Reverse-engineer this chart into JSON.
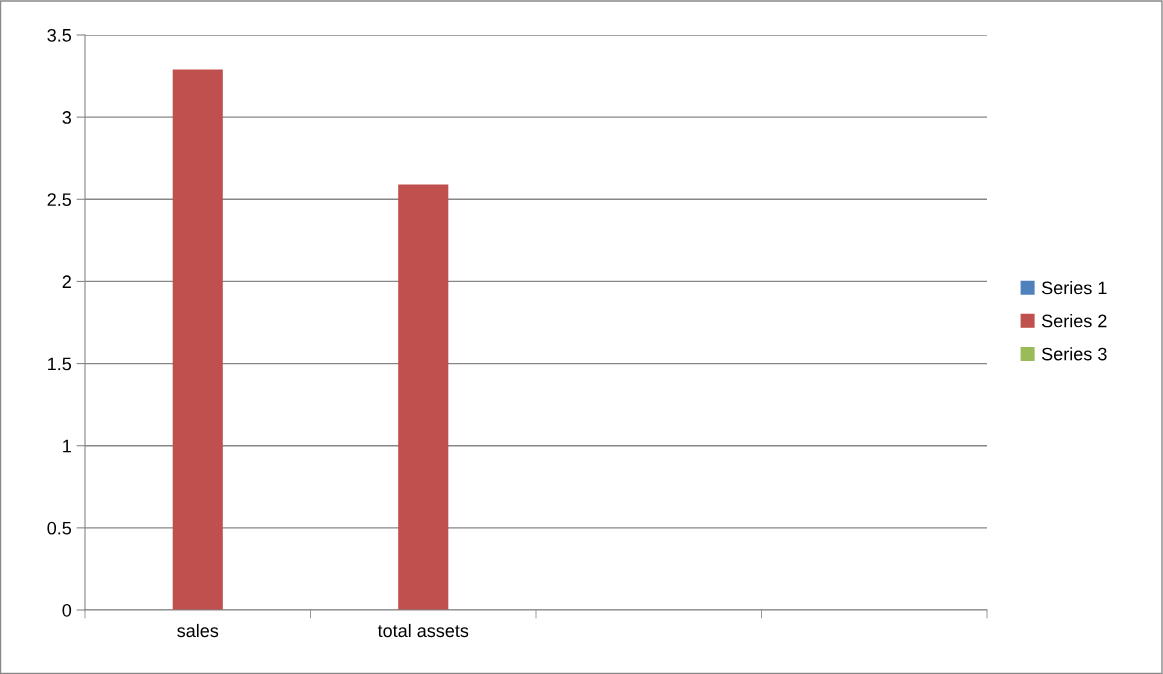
{
  "chart_data": {
    "type": "bar",
    "categories": [
      "sales",
      "total assets",
      null,
      null
    ],
    "series": [
      {
        "name": "Series 1",
        "color": "#4f81bd",
        "values": [
          null,
          null,
          null,
          null
        ]
      },
      {
        "name": "Series 2",
        "color": "#c0504d",
        "values": [
          3.29,
          2.59,
          null,
          null
        ]
      },
      {
        "name": "Series 3",
        "color": "#9bbb59",
        "values": [
          null,
          null,
          null,
          null
        ]
      }
    ],
    "ylim": [
      0,
      3.5
    ],
    "yticks": [
      0,
      0.5,
      1,
      1.5,
      2,
      2.5,
      3,
      3.5
    ],
    "grid": "y",
    "legend": "right"
  }
}
